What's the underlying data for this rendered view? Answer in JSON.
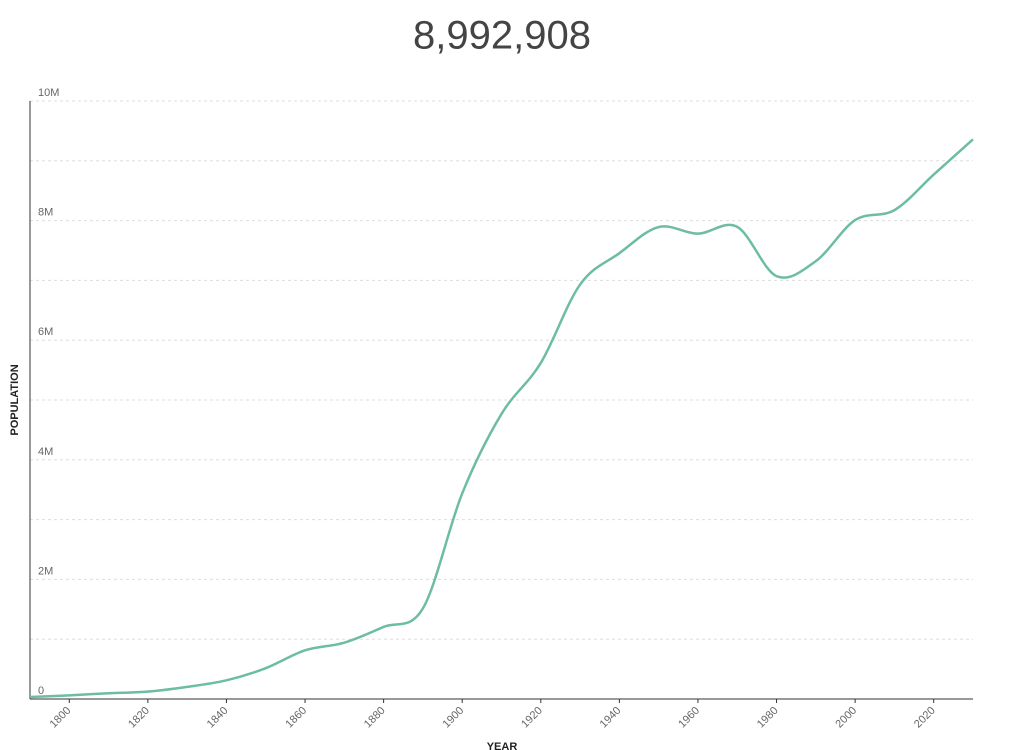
{
  "chart_data": {
    "type": "line",
    "title": "8,992,908",
    "x_label": "YEAR",
    "y_label": "POPULATION",
    "x": [
      1790,
      1800,
      1810,
      1820,
      1830,
      1840,
      1850,
      1860,
      1870,
      1880,
      1890,
      1900,
      1910,
      1920,
      1930,
      1940,
      1950,
      1960,
      1970,
      1980,
      1990,
      2000,
      2010,
      2020,
      2030
    ],
    "series": [
      {
        "name": "Population",
        "color": "#6dbd9f",
        "values": [
          33131,
          60515,
          96373,
          123706,
          202589,
          312710,
          515547,
          813669,
          942292,
          1206299,
          1515301,
          3437202,
          4766883,
          5620048,
          6930446,
          7454995,
          7891957,
          7781984,
          7894862,
          7071639,
          7322564,
          8008278,
          8175133,
          8770000,
          9360000
        ]
      }
    ],
    "xlim": [
      1790,
      2030
    ],
    "xticks": [
      1800,
      1820,
      1840,
      1860,
      1880,
      1900,
      1920,
      1940,
      1960,
      1980,
      2000,
      2020
    ],
    "ylim": [
      0,
      10000000
    ],
    "yticks": [
      {
        "value": 0,
        "label": "0"
      },
      {
        "value": 2000000,
        "label": "2M"
      },
      {
        "value": 4000000,
        "label": "4M"
      },
      {
        "value": 6000000,
        "label": "6M"
      },
      {
        "value": 8000000,
        "label": "8M"
      },
      {
        "value": 10000000,
        "label": "10M"
      }
    ],
    "y_minor_gridlines": [
      1000000,
      3000000,
      5000000,
      7000000,
      9000000
    ],
    "grid": true
  }
}
